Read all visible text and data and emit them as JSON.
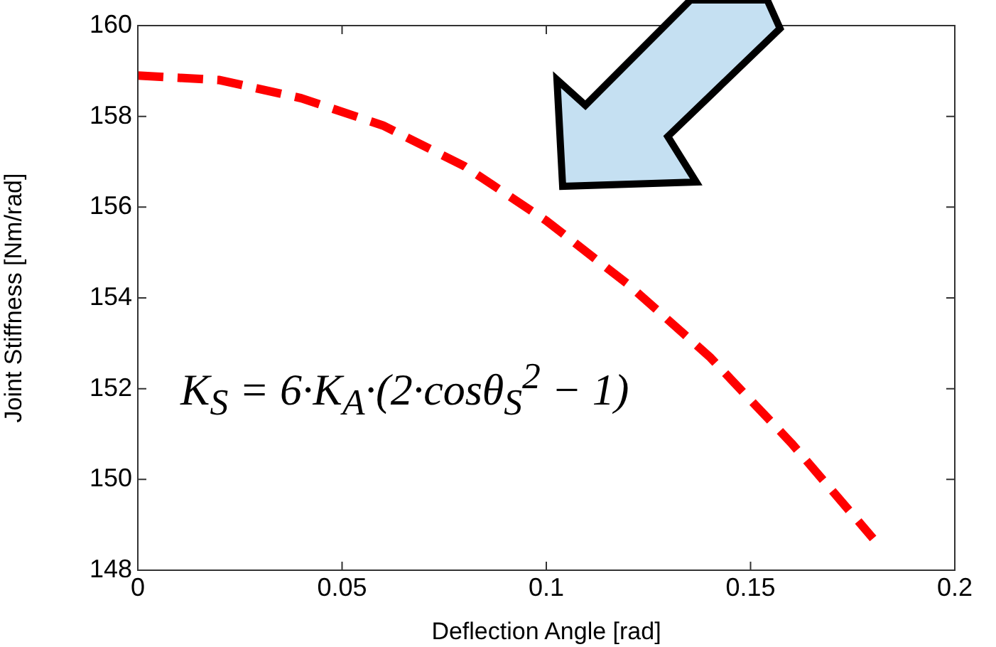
{
  "chart_data": {
    "type": "line",
    "xlabel": "Deflection Angle [rad]",
    "ylabel": "Joint Stiffness [Nm/rad]",
    "x": [
      0,
      0.02,
      0.04,
      0.06,
      0.08,
      0.1,
      0.12,
      0.14,
      0.16,
      0.18
    ],
    "series": [
      {
        "color": "#ff0000",
        "values": [
          158.9,
          158.8,
          158.4,
          157.8,
          156.9,
          155.7,
          154.3,
          152.7,
          150.8,
          148.7
        ]
      }
    ],
    "xlim": [
      0,
      0.2
    ],
    "xticks": [
      0,
      0.05,
      0.1,
      0.15,
      0.2
    ],
    "ylim": [
      148,
      160
    ],
    "yticks": [
      148,
      150,
      152,
      154,
      156,
      158,
      160
    ],
    "grid": false,
    "legend": false,
    "marker": "none",
    "line_style": "dashed",
    "annotations": [
      "K$_{S}$ = 6·K$_{A}$·(2·cosθ$_{S}$$^{2}$ − 1)"
    ]
  }
}
